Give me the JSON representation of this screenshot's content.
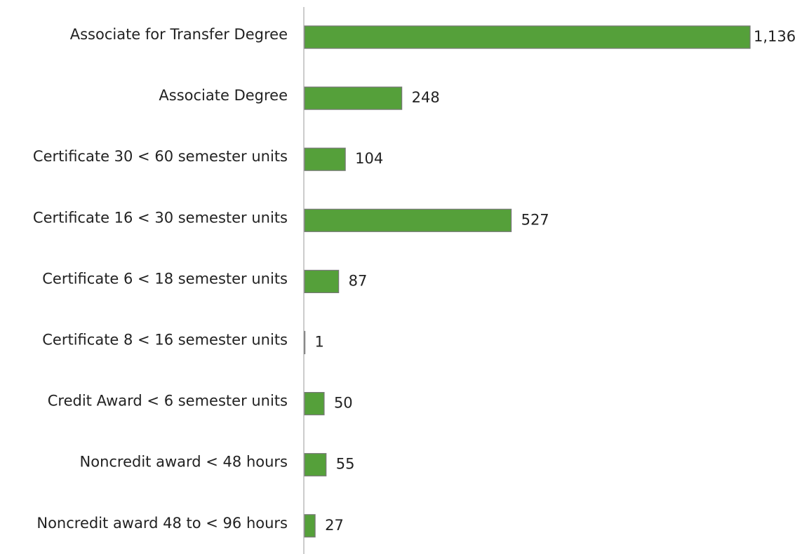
{
  "chart_data": {
    "type": "bar",
    "orientation": "horizontal",
    "categories": [
      "Associate for Transfer Degree",
      "Associate Degree",
      "Certificate 30 < 60 semester units",
      "Certificate 16 < 30 semester units",
      "Certificate 6 < 18 semester units",
      "Certificate 8 < 16 semester units",
      "Credit Award < 6 semester units",
      "Noncredit award < 48 hours",
      "Noncredit award 48 to < 96 hours"
    ],
    "values": [
      1136,
      248,
      104,
      527,
      87,
      1,
      50,
      55,
      27
    ],
    "value_labels": [
      "1,136",
      "248",
      "104",
      "527",
      "87",
      "1",
      "50",
      "55",
      "27"
    ],
    "color": "#55a03a"
  }
}
